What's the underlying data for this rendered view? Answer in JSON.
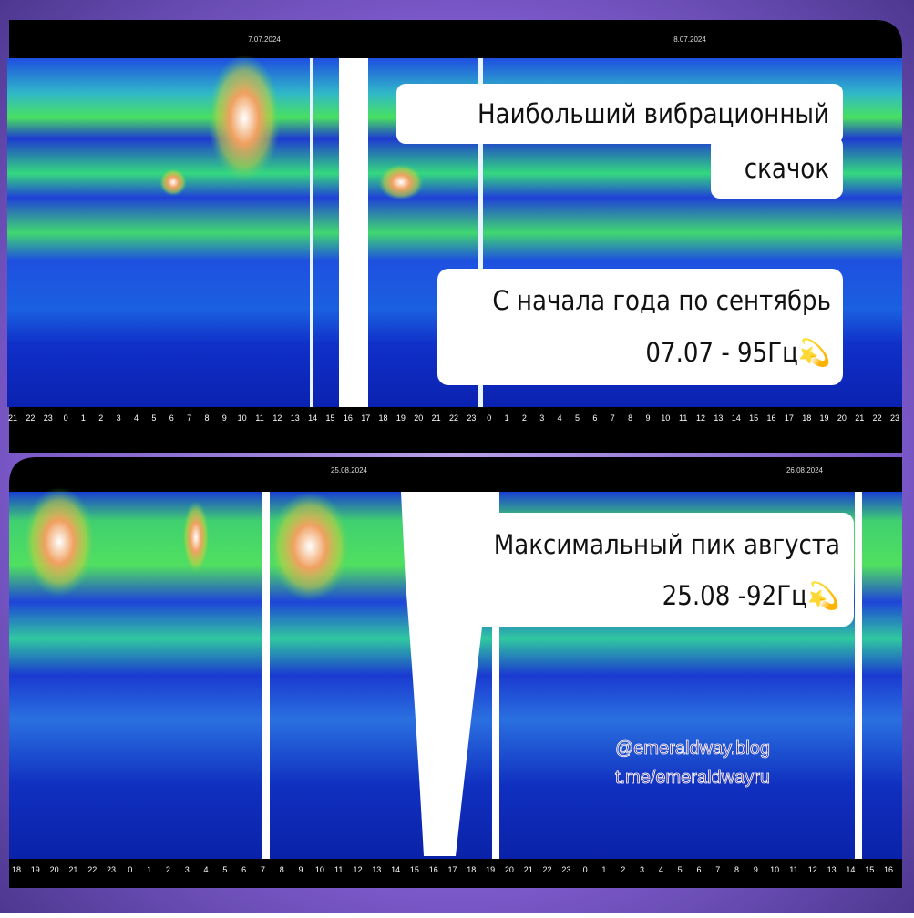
{
  "panels": [
    {
      "dates": [
        "7.07.2024",
        "8.07.2024"
      ],
      "hours": [
        21,
        22,
        23,
        0,
        1,
        2,
        3,
        4,
        5,
        6,
        7,
        8,
        9,
        10,
        11,
        12,
        13,
        14,
        15,
        16,
        17,
        18,
        19,
        20,
        21,
        22,
        23,
        0,
        1,
        2,
        3,
        4,
        5,
        6,
        7,
        8,
        9,
        10,
        11,
        12,
        13,
        14,
        15,
        16,
        17,
        18,
        19,
        20,
        21,
        22,
        23
      ]
    },
    {
      "dates": [
        "25.08.2024",
        "26.08.2024"
      ],
      "hours": [
        18,
        19,
        20,
        21,
        22,
        23,
        0,
        1,
        2,
        3,
        4,
        5,
        6,
        7,
        8,
        9,
        10,
        11,
        12,
        13,
        14,
        15,
        16,
        17,
        18,
        19,
        20,
        21,
        22,
        23,
        0,
        1,
        2,
        3,
        4,
        5,
        6,
        7,
        8,
        9,
        10,
        11,
        12,
        13,
        14,
        15,
        16
      ]
    }
  ],
  "captions": [
    {
      "lines": [
        "Наибольший вибрационный",
        "скачок"
      ]
    },
    {
      "lines": [
        "С начала года по сентябрь",
        "07.07 - 95Гц💫"
      ]
    },
    {
      "lines": [
        "Максимальный пик августа",
        "25.08 -92Гц💫"
      ]
    }
  ],
  "watermark": [
    "@emeraldway.blog",
    "t.me/emeraldwayru"
  ]
}
